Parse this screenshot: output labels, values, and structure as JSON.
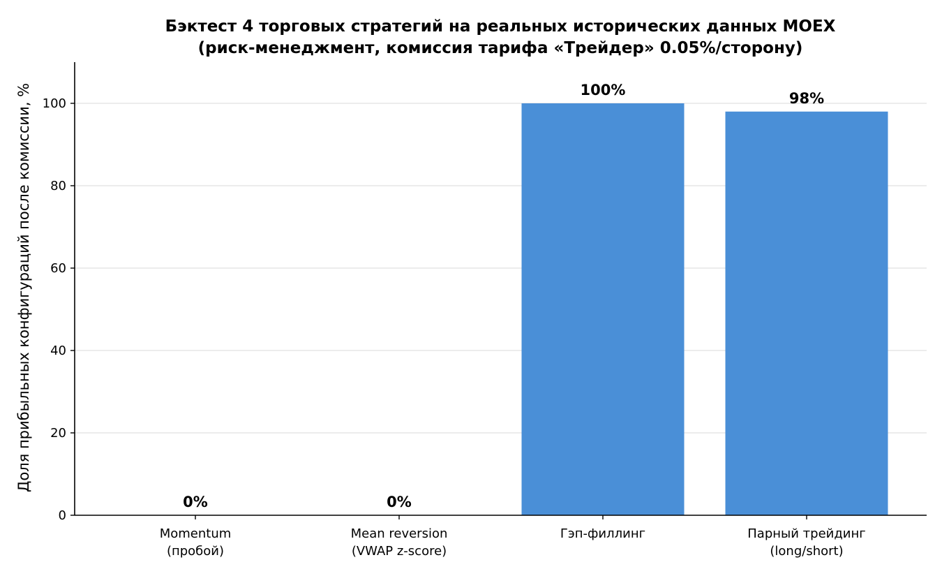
{
  "chart_data": {
    "type": "bar",
    "title_lines": [
      "Бэктест 4 торговых стратегий на реальных исторических данных MOEX",
      "(риск-менеджмент, комиссия тарифа «Трейдер» 0.05%/сторону)"
    ],
    "xlabel": "",
    "ylabel": "Доля прибыльных конфигураций после комиссии, %",
    "categories": [
      [
        "Momentum",
        "(пробой)"
      ],
      [
        "Mean reversion",
        "(VWAP z-score)"
      ],
      [
        "Гэп-филлинг"
      ],
      [
        "Парный трейдинг",
        "(long/short)"
      ]
    ],
    "values": [
      0,
      0,
      100,
      98
    ],
    "value_labels": [
      "0%",
      "0%",
      "100%",
      "98%"
    ],
    "ylim": [
      0,
      110
    ],
    "yticks": [
      0,
      20,
      40,
      60,
      80,
      100
    ],
    "grid": "horizontal",
    "colors": {
      "bar": "#4a8fd7",
      "grid": "#e0e0e0",
      "axis": "#000000"
    }
  }
}
